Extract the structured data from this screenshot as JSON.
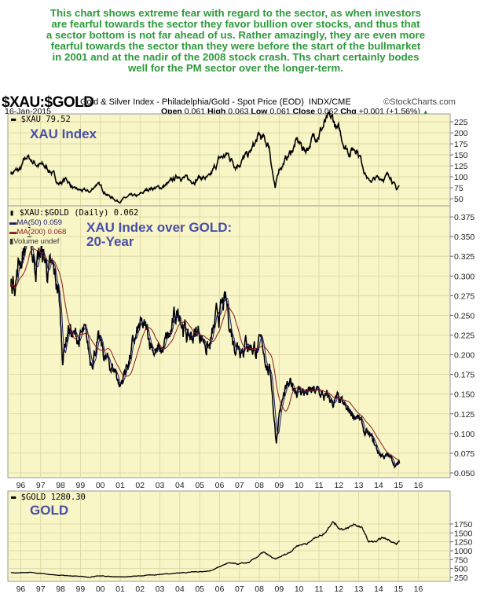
{
  "commentary": [
    "This chart shows extreme fear with regard to the sector, as when investors",
    "are fearful towards the sector they favor bullion over stocks, and thus that",
    "a sector bottom is not far ahead of us. Rather amazingly, they are even more",
    "fearful towards the sector than they were before the start of the bullmarket",
    "in 2001 and at the nadir of the 2008 stock crash. Ths chart certainly bodes",
    "well for the PM sector over the longer-term."
  ],
  "header": {
    "symbol": "$XAU:$GOLD",
    "description": "Gold & Silver Index - Philadelphia/Gold - Spot Price (EOD)",
    "exchange": "INDX/CME",
    "brand": "©StockCharts.com",
    "date": "16-Jan-2015",
    "open_label": "Open",
    "open": "0.061",
    "high_label": "High",
    "high": "0.063",
    "low_label": "Low",
    "low": "0.061",
    "close_label": "Close",
    "close": "0.062",
    "chg_label": "Chg",
    "chg": "+0.001 (+1.56%)"
  },
  "colors": {
    "panel_bg": "#f8f5c6",
    "grid": "#d9d4a0",
    "price": "#000000",
    "ma50": "#1a1a6e",
    "ma200": "#8b1a1a",
    "annotation": "#4a4fa8",
    "commentary": "#2e9a3a"
  },
  "chart_data": [
    {
      "type": "line",
      "legend": "$XAU 79.52",
      "annotation": "XAU Index",
      "yticks": [
        50,
        75,
        100,
        125,
        150,
        175,
        200,
        225
      ],
      "ylim": [
        34,
        243
      ],
      "x": [
        1995.5,
        1996.0,
        1996.3,
        1996.8,
        1997.5,
        1997.9,
        1998.3,
        1998.7,
        1999.5,
        1999.8,
        2000.5,
        2000.9,
        2001.5,
        2001.9,
        2002.5,
        2003.0,
        2003.5,
        2004.0,
        2004.5,
        2005.0,
        2005.5,
        2006.0,
        2006.4,
        2006.8,
        2007.5,
        2008.0,
        2008.5,
        2008.8,
        2009.0,
        2009.5,
        2009.9,
        2010.3,
        2010.9,
        2011.3,
        2011.7,
        2012.0,
        2012.5,
        2012.9,
        2013.2,
        2013.5,
        2013.9,
        2014.3,
        2014.6,
        2014.9,
        2015.05
      ],
      "values": [
        110,
        115,
        145,
        130,
        115,
        85,
        95,
        70,
        65,
        85,
        55,
        45,
        55,
        55,
        75,
        75,
        85,
        105,
        90,
        100,
        95,
        140,
        150,
        130,
        150,
        190,
        170,
        70,
        120,
        150,
        180,
        160,
        200,
        220,
        225,
        200,
        160,
        170,
        130,
        90,
        95,
        100,
        105,
        70,
        79.52
      ]
    },
    {
      "type": "line",
      "legend": "$XAU:$GOLD (Daily) 0.062",
      "legend_ma50": "MA(50) 0.059",
      "legend_ma200": "MA(200) 0.068",
      "legend_volume": "Volume undef",
      "annotation_lines": [
        "XAU Index over GOLD:",
        "20-Year"
      ],
      "yticks": [
        0.05,
        0.075,
        0.1,
        0.125,
        0.15,
        0.175,
        0.2,
        0.225,
        0.25,
        0.275,
        0.3,
        0.325,
        0.35,
        0.375
      ],
      "ylim": [
        0.044,
        0.389
      ],
      "x": [
        1995.5,
        1995.8,
        1996.3,
        1996.7,
        1997.0,
        1997.5,
        1997.9,
        1998.1,
        1998.4,
        1998.7,
        1999.2,
        1999.5,
        1999.8,
        2000.3,
        2000.8,
        2001.0,
        2001.5,
        2002.0,
        2002.5,
        2003.0,
        2003.5,
        2004.0,
        2004.4,
        2005.0,
        2005.5,
        2006.0,
        2006.3,
        2006.7,
        2007.3,
        2007.9,
        2008.3,
        2008.6,
        2008.85,
        2009.0,
        2009.3,
        2009.8,
        2010.5,
        2011.0,
        2011.5,
        2011.9,
        2012.4,
        2012.9,
        2013.3,
        2013.7,
        2014.0,
        2014.5,
        2014.9,
        2015.05
      ],
      "values": [
        0.29,
        0.31,
        0.35,
        0.32,
        0.33,
        0.3,
        0.28,
        0.2,
        0.24,
        0.22,
        0.22,
        0.19,
        0.22,
        0.19,
        0.18,
        0.16,
        0.2,
        0.23,
        0.22,
        0.2,
        0.22,
        0.26,
        0.22,
        0.23,
        0.21,
        0.25,
        0.26,
        0.22,
        0.22,
        0.21,
        0.2,
        0.17,
        0.09,
        0.13,
        0.15,
        0.16,
        0.15,
        0.15,
        0.14,
        0.14,
        0.125,
        0.125,
        0.1,
        0.09,
        0.075,
        0.07,
        0.06,
        0.062
      ],
      "xtick_labels": [
        "96",
        "97",
        "98",
        "99",
        "00",
        "01",
        "02",
        "03",
        "04",
        "05",
        "06",
        "07",
        "08",
        "09",
        "10",
        "11",
        "12",
        "13",
        "14",
        "15",
        "16"
      ]
    },
    {
      "type": "line",
      "legend": "$GOLD 1280.30",
      "annotation": "GOLD",
      "yticks": [
        250,
        500,
        750,
        1000,
        1250,
        1500,
        1750
      ],
      "ylim": [
        140,
        2677
      ],
      "x": [
        1995.5,
        1996.5,
        1997.5,
        1998.5,
        1999.5,
        1999.8,
        2000.5,
        2001.3,
        2002.5,
        2003.5,
        2004.5,
        2005.5,
        2006.4,
        2006.9,
        2007.5,
        2008.2,
        2008.8,
        2009.5,
        2009.9,
        2010.5,
        2010.9,
        2011.3,
        2011.67,
        2012.0,
        2012.4,
        2012.8,
        2013.2,
        2013.5,
        2013.9,
        2014.2,
        2014.6,
        2014.9,
        2015.05
      ],
      "values": [
        385,
        385,
        330,
        295,
        260,
        300,
        280,
        265,
        315,
        360,
        400,
        430,
        650,
        620,
        670,
        950,
        750,
        950,
        1150,
        1230,
        1400,
        1500,
        1850,
        1650,
        1600,
        1750,
        1600,
        1250,
        1250,
        1350,
        1300,
        1180,
        1280.3
      ],
      "xtick_labels": [
        "96",
        "97",
        "98",
        "99",
        "00",
        "01",
        "02",
        "03",
        "04",
        "05",
        "06",
        "07",
        "08",
        "09",
        "10",
        "11",
        "12",
        "13",
        "14",
        "15",
        "16"
      ]
    }
  ]
}
